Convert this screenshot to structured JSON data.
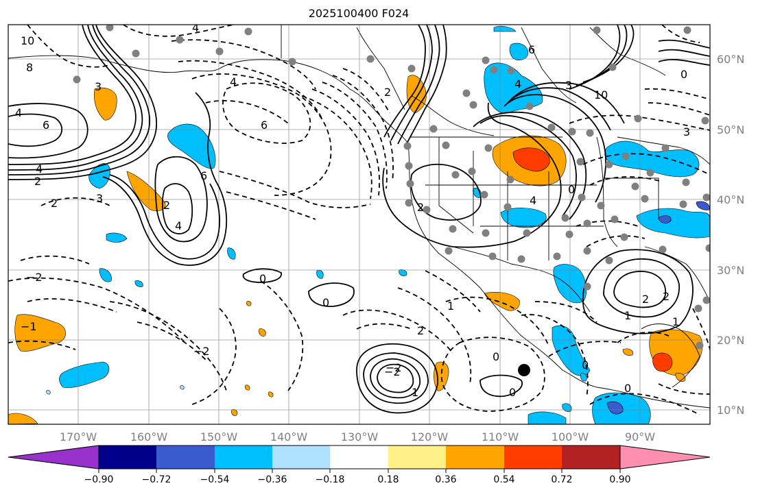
{
  "title": "2025100400 F024",
  "lon_labels": [
    "170°W",
    "160°W",
    "150°W",
    "140°W",
    "130°W",
    "120°W",
    "110°W",
    "100°W",
    "90°W"
  ],
  "lat_labels": [
    "60°N",
    "50°N",
    "40°N",
    "30°N",
    "20°N",
    "10°N"
  ],
  "colorbar": {
    "colors": [
      "#9932cc",
      "#00008b",
      "#3a5bd0",
      "#00bfff",
      "#b0e0ff",
      "#ffffff",
      "#fff08a",
      "#ffa500",
      "#ff3c00",
      "#b22222",
      "#ff8fb0"
    ],
    "tick_labels": [
      "−0.90",
      "−0.72",
      "−0.54",
      "−0.36",
      "−0.18",
      "0.18",
      "0.36",
      "0.54",
      "0.72",
      "0.90"
    ]
  },
  "contour_labels": [
    "4",
    "4",
    "6",
    "3",
    "10",
    "8",
    "6",
    "4",
    "2",
    "2",
    "3",
    "4",
    "2",
    "0",
    "0",
    "−2",
    "−2",
    "2",
    "2",
    "4",
    "4",
    "6",
    "0",
    "0",
    "1",
    "2",
    "1",
    "0",
    "0",
    "0",
    "3",
    "2",
    "2",
    "10",
    "0",
    "3",
    "4",
    "6",
    "−2",
    "−2",
    "1",
    "1",
    "−1"
  ],
  "station_marker": "black-dot"
}
